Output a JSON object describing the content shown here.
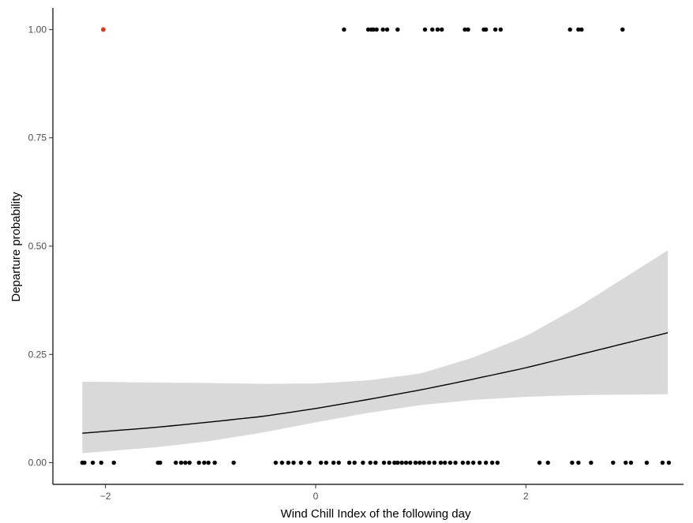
{
  "chart_data": {
    "type": "scatter",
    "xlabel": "Wind Chill Index of the following day",
    "ylabel": "Departure probability",
    "xlim": [
      -2.5,
      3.5
    ],
    "ylim": [
      -0.05,
      1.05
    ],
    "x_ticks": [
      -2,
      0,
      2
    ],
    "x_tick_labels": [
      "−2",
      "0",
      "2"
    ],
    "y_ticks": [
      0,
      0.25,
      0.5,
      0.75,
      1
    ],
    "y_tick_labels": [
      "0.00",
      "0.25",
      "0.50",
      "0.75",
      "1.00"
    ],
    "grid": false,
    "legend": "none",
    "colors": {
      "points": "#000000",
      "highlight": "#e8331f",
      "fit_line": "#000000",
      "ribbon": "#d9d9d9"
    },
    "fit": {
      "x": [
        -2.22,
        -1.5,
        -1.0,
        -0.5,
        0.0,
        0.5,
        1.0,
        1.5,
        2.0,
        2.5,
        3.35
      ],
      "y": [
        0.068,
        0.082,
        0.094,
        0.107,
        0.125,
        0.146,
        0.168,
        0.193,
        0.219,
        0.249,
        0.3
      ],
      "lower": [
        0.022,
        0.036,
        0.05,
        0.07,
        0.093,
        0.115,
        0.133,
        0.145,
        0.152,
        0.156,
        0.158
      ],
      "upper": [
        0.187,
        0.185,
        0.184,
        0.182,
        0.183,
        0.19,
        0.206,
        0.243,
        0.292,
        0.36,
        0.49
      ]
    },
    "points_y1": [
      0.27,
      0.5,
      0.53,
      0.55,
      0.58,
      0.64,
      0.68,
      0.78,
      1.04,
      1.11,
      1.16,
      1.2,
      1.42,
      1.45,
      1.6,
      1.62,
      1.71,
      1.76,
      2.42,
      2.5,
      2.53,
      2.92
    ],
    "points_y0": [
      -2.22,
      -2.2,
      -2.12,
      -2.04,
      -1.92,
      -1.5,
      -1.48,
      -1.33,
      -1.28,
      -1.24,
      -1.2,
      -1.11,
      -1.06,
      -1.02,
      -0.96,
      -0.78,
      -0.38,
      -0.32,
      -0.26,
      -0.21,
      -0.14,
      -0.06,
      0.05,
      0.1,
      0.17,
      0.22,
      0.32,
      0.37,
      0.45,
      0.52,
      0.57,
      0.65,
      0.7,
      0.75,
      0.78,
      0.82,
      0.86,
      0.9,
      0.95,
      0.99,
      1.03,
      1.08,
      1.13,
      1.19,
      1.23,
      1.28,
      1.33,
      1.4,
      1.45,
      1.5,
      1.56,
      1.62,
      1.68,
      1.73,
      2.13,
      2.21,
      2.44,
      2.5,
      2.62,
      2.83,
      2.95,
      3.0,
      3.15,
      3.3,
      3.36
    ],
    "highlight_points": [
      {
        "x": -2.02,
        "y": 1
      }
    ]
  }
}
